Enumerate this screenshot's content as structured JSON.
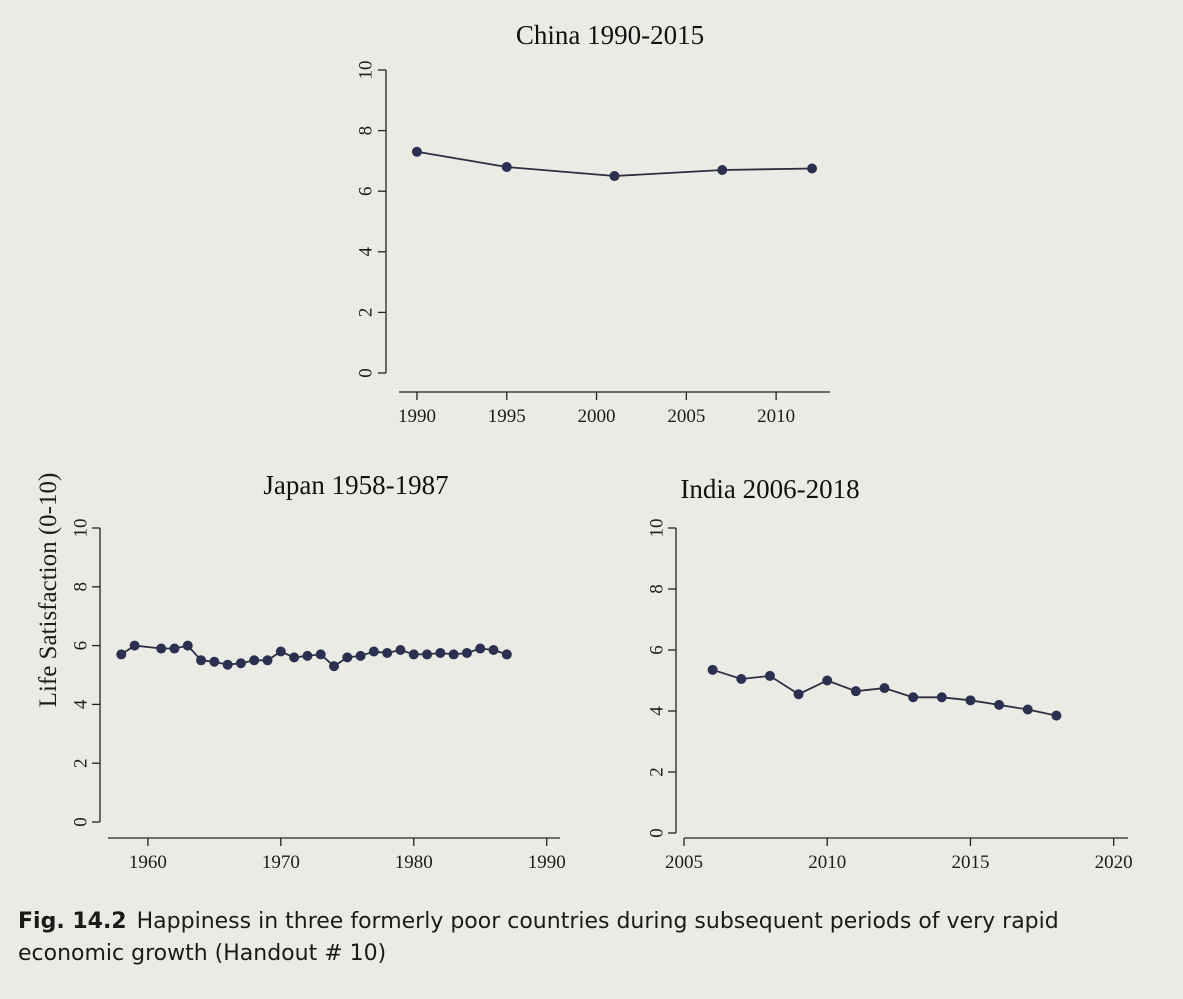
{
  "y_axis_label": "Life Satisfaction (0-10)",
  "caption": {
    "figure": "Fig. 14.2",
    "text": "Happiness in three formerly poor countries during subsequent periods of very rapid economic growth (Handout # 10)"
  },
  "colors": {
    "line": "#2a3040",
    "marker": "#2b3050",
    "axis": "#222222",
    "paper": "#ebebe6"
  },
  "chart_data": [
    {
      "type": "line",
      "title": "China 1990-2015",
      "xlim": [
        1989,
        2013
      ],
      "ylim": [
        0,
        10
      ],
      "xticks": [
        1990,
        1995,
        2000,
        2005,
        2010
      ],
      "yticks": [
        0,
        2,
        4,
        6,
        8,
        10
      ],
      "series": [
        {
          "x": [
            1990,
            1995,
            2001,
            2007,
            2012
          ],
          "y": [
            7.3,
            6.8,
            6.5,
            6.7,
            6.75
          ]
        }
      ]
    },
    {
      "type": "line",
      "title": "Japan 1958-1987",
      "xlim": [
        1957,
        1991
      ],
      "ylim": [
        0,
        10
      ],
      "xticks": [
        1960,
        1970,
        1980,
        1990
      ],
      "yticks": [
        0,
        2,
        4,
        6,
        8,
        10
      ],
      "series": [
        {
          "x": [
            1958,
            1959,
            1961,
            1962,
            1963,
            1964,
            1965,
            1966,
            1967,
            1968,
            1969,
            1970,
            1971,
            1972,
            1973,
            1974,
            1975,
            1976,
            1977,
            1978,
            1979,
            1980,
            1981,
            1982,
            1983,
            1984,
            1985,
            1986,
            1987
          ],
          "y": [
            5.7,
            6.0,
            5.9,
            5.9,
            6.0,
            5.5,
            5.45,
            5.35,
            5.4,
            5.5,
            5.5,
            5.8,
            5.6,
            5.65,
            5.7,
            5.3,
            5.6,
            5.65,
            5.8,
            5.75,
            5.85,
            5.7,
            5.7,
            5.75,
            5.7,
            5.75,
            5.9,
            5.85,
            5.7
          ]
        }
      ]
    },
    {
      "type": "line",
      "title": "India 2006-2018",
      "xlim": [
        2005,
        2020.5
      ],
      "ylim": [
        0,
        10
      ],
      "xticks": [
        2005,
        2010,
        2015,
        2020
      ],
      "yticks": [
        0,
        2,
        4,
        6,
        8,
        10
      ],
      "series": [
        {
          "x": [
            2006,
            2007,
            2008,
            2009,
            2010,
            2011,
            2012,
            2013,
            2014,
            2015,
            2016,
            2017,
            2018
          ],
          "y": [
            5.35,
            5.05,
            5.15,
            4.55,
            5.0,
            4.65,
            4.75,
            4.45,
            4.45,
            4.35,
            4.2,
            4.05,
            3.85
          ]
        }
      ]
    }
  ]
}
